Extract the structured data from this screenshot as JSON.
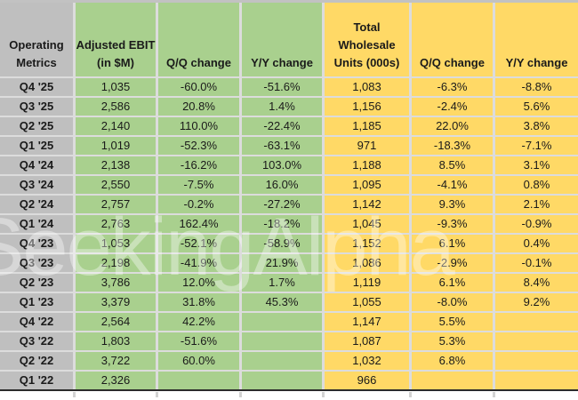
{
  "watermark": "SeekingAlpha",
  "colors": {
    "label_column_gray": "#BFBFBF",
    "ebit_group_green": "#A9D08E",
    "units_group_yellow": "#FFD966",
    "gridline": "#DCDCDC"
  },
  "chart_data": {
    "type": "table",
    "title": "Operating Metrics",
    "columns": [
      "Operating Metrics",
      "Adjusted EBIT (in $M)",
      "Q/Q change",
      "Y/Y change",
      "Total Wholesale Units (000s)",
      "Q/Q change",
      "Y/Y change"
    ],
    "rows": [
      [
        "Q4 '25",
        "1,035",
        "-60.0%",
        "-51.6%",
        "1,083",
        "-6.3%",
        "-8.8%"
      ],
      [
        "Q3 '25",
        "2,586",
        "20.8%",
        "1.4%",
        "1,156",
        "-2.4%",
        "5.6%"
      ],
      [
        "Q2 '25",
        "2,140",
        "110.0%",
        "-22.4%",
        "1,185",
        "22.0%",
        "3.8%"
      ],
      [
        "Q1 '25",
        "1,019",
        "-52.3%",
        "-63.1%",
        "971",
        "-18.3%",
        "-7.1%"
      ],
      [
        "Q4 '24",
        "2,138",
        "-16.2%",
        "103.0%",
        "1,188",
        "8.5%",
        "3.1%"
      ],
      [
        "Q3 '24",
        "2,550",
        "-7.5%",
        "16.0%",
        "1,095",
        "-4.1%",
        "0.8%"
      ],
      [
        "Q2 '24",
        "2,757",
        "-0.2%",
        "-27.2%",
        "1,142",
        "9.3%",
        "2.1%"
      ],
      [
        "Q1 '24",
        "2,763",
        "162.4%",
        "-18.2%",
        "1,045",
        "-9.3%",
        "-0.9%"
      ],
      [
        "Q4 '23",
        "1,053",
        "-52.1%",
        "-58.9%",
        "1,152",
        "6.1%",
        "0.4%"
      ],
      [
        "Q3 '23",
        "2,198",
        "-41.9%",
        "21.9%",
        "1,086",
        "-2.9%",
        "-0.1%"
      ],
      [
        "Q2 '23",
        "3,786",
        "12.0%",
        "1.7%",
        "1,119",
        "6.1%",
        "8.4%"
      ],
      [
        "Q1 '23",
        "3,379",
        "31.8%",
        "45.3%",
        "1,055",
        "-8.0%",
        "9.2%"
      ],
      [
        "Q4 '22",
        "2,564",
        "42.2%",
        "",
        "1,147",
        "5.5%",
        ""
      ],
      [
        "Q3 '22",
        "1,803",
        "-51.6%",
        "",
        "1,087",
        "5.3%",
        ""
      ],
      [
        "Q2 '22",
        "3,722",
        "60.0%",
        "",
        "1,032",
        "6.8%",
        ""
      ],
      [
        "Q1 '22",
        "2,326",
        "",
        "",
        "966",
        "",
        ""
      ]
    ]
  }
}
